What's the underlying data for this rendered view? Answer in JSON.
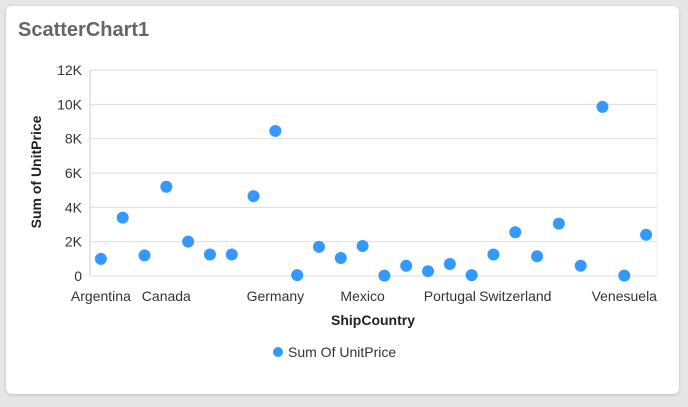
{
  "card": {
    "title": "ScatterChart1"
  },
  "chart_data": {
    "type": "scatter",
    "xlabel": "ShipCountry",
    "ylabel": "Sum of UnitPrice",
    "ylim": [
      0,
      12000
    ],
    "yticks": [
      0,
      2000,
      4000,
      6000,
      8000,
      10000,
      12000
    ],
    "ytick_labels": [
      "0",
      "2K",
      "4K",
      "6K",
      "8K",
      "10K",
      "12K"
    ],
    "x_tick_labels": [
      "Argentina",
      "Canada",
      "Germany",
      "Mexico",
      "Portugal",
      "Switzerland",
      "Venesuela"
    ],
    "x_tick_indices": [
      0,
      3,
      8,
      12,
      16,
      19,
      24
    ],
    "point_count": 26,
    "grid": true,
    "legend_position": "bottom",
    "series": [
      {
        "name": "Sum Of UnitPrice",
        "color": "#3399ff",
        "values": [
          1000,
          3400,
          1200,
          5200,
          2000,
          1250,
          1250,
          4650,
          8450,
          50,
          1700,
          1050,
          1750,
          20,
          600,
          280,
          700,
          50,
          1250,
          2550,
          1150,
          3050,
          600,
          9850,
          20,
          2400
        ]
      }
    ]
  }
}
